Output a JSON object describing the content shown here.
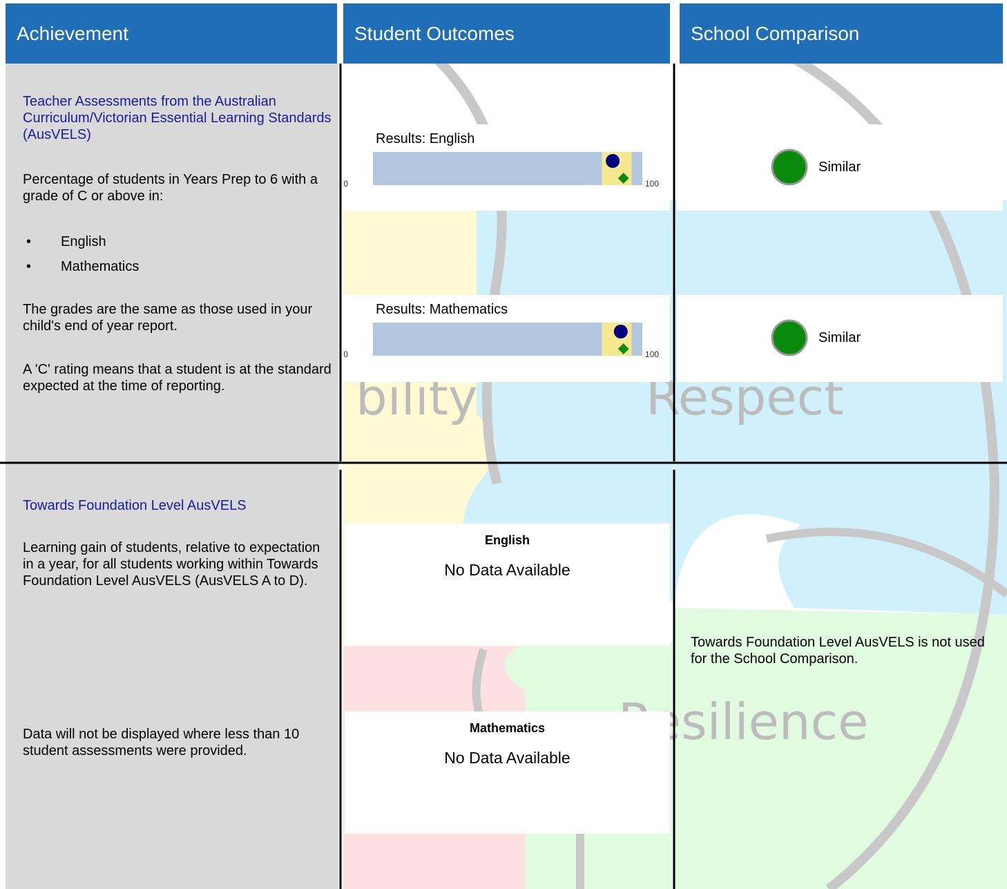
{
  "header": {
    "columns": [
      "Achievement",
      "Student Outcomes",
      "School Comparison"
    ]
  },
  "background": {
    "words": [
      "bility",
      "Respect",
      "Resilience"
    ]
  },
  "rows": [
    {
      "title": "Teacher Assessments from the Australian Curriculum/Victorian Essential Learning Standards (AusVELS)",
      "intro": "Percentage of students in Years Prep to 6 with a grade of C or above in:",
      "bullets": [
        "English",
        "Mathematics"
      ],
      "notes": [
        "The grades are the same as those used in your child's end of year report.",
        "A 'C' rating means that a student is at the standard expected at the time of reporting."
      ],
      "charts": [
        {
          "type": "range-bar",
          "title": "Results: English",
          "xlim": [
            0,
            100
          ],
          "xticks": [
            0,
            100
          ],
          "band": [
            85,
            96
          ],
          "circle": 89,
          "diamond": 93
        },
        {
          "type": "range-bar",
          "title": "Results: Mathematics",
          "xlim": [
            0,
            100
          ],
          "xticks": [
            0,
            100
          ],
          "band": [
            85,
            96
          ],
          "circle": 92,
          "diamond": 93
        }
      ],
      "comparison": [
        "Similar",
        "Similar"
      ]
    },
    {
      "title": "Towards Foundation Level AusVELS",
      "intro": "Learning gain of students, relative to expectation in a year, for all students working within Towards Foundation Level AusVELS (AusVELS A to D).",
      "notes": [
        "Data will not be displayed where less than 10 student assessments were provided."
      ],
      "panels": [
        {
          "title": "English",
          "message": "No Data Available"
        },
        {
          "title": "Mathematics",
          "message": "No Data Available"
        }
      ],
      "comparison_note": "Towards Foundation Level AusVELS is not used for the School Comparison."
    }
  ]
}
